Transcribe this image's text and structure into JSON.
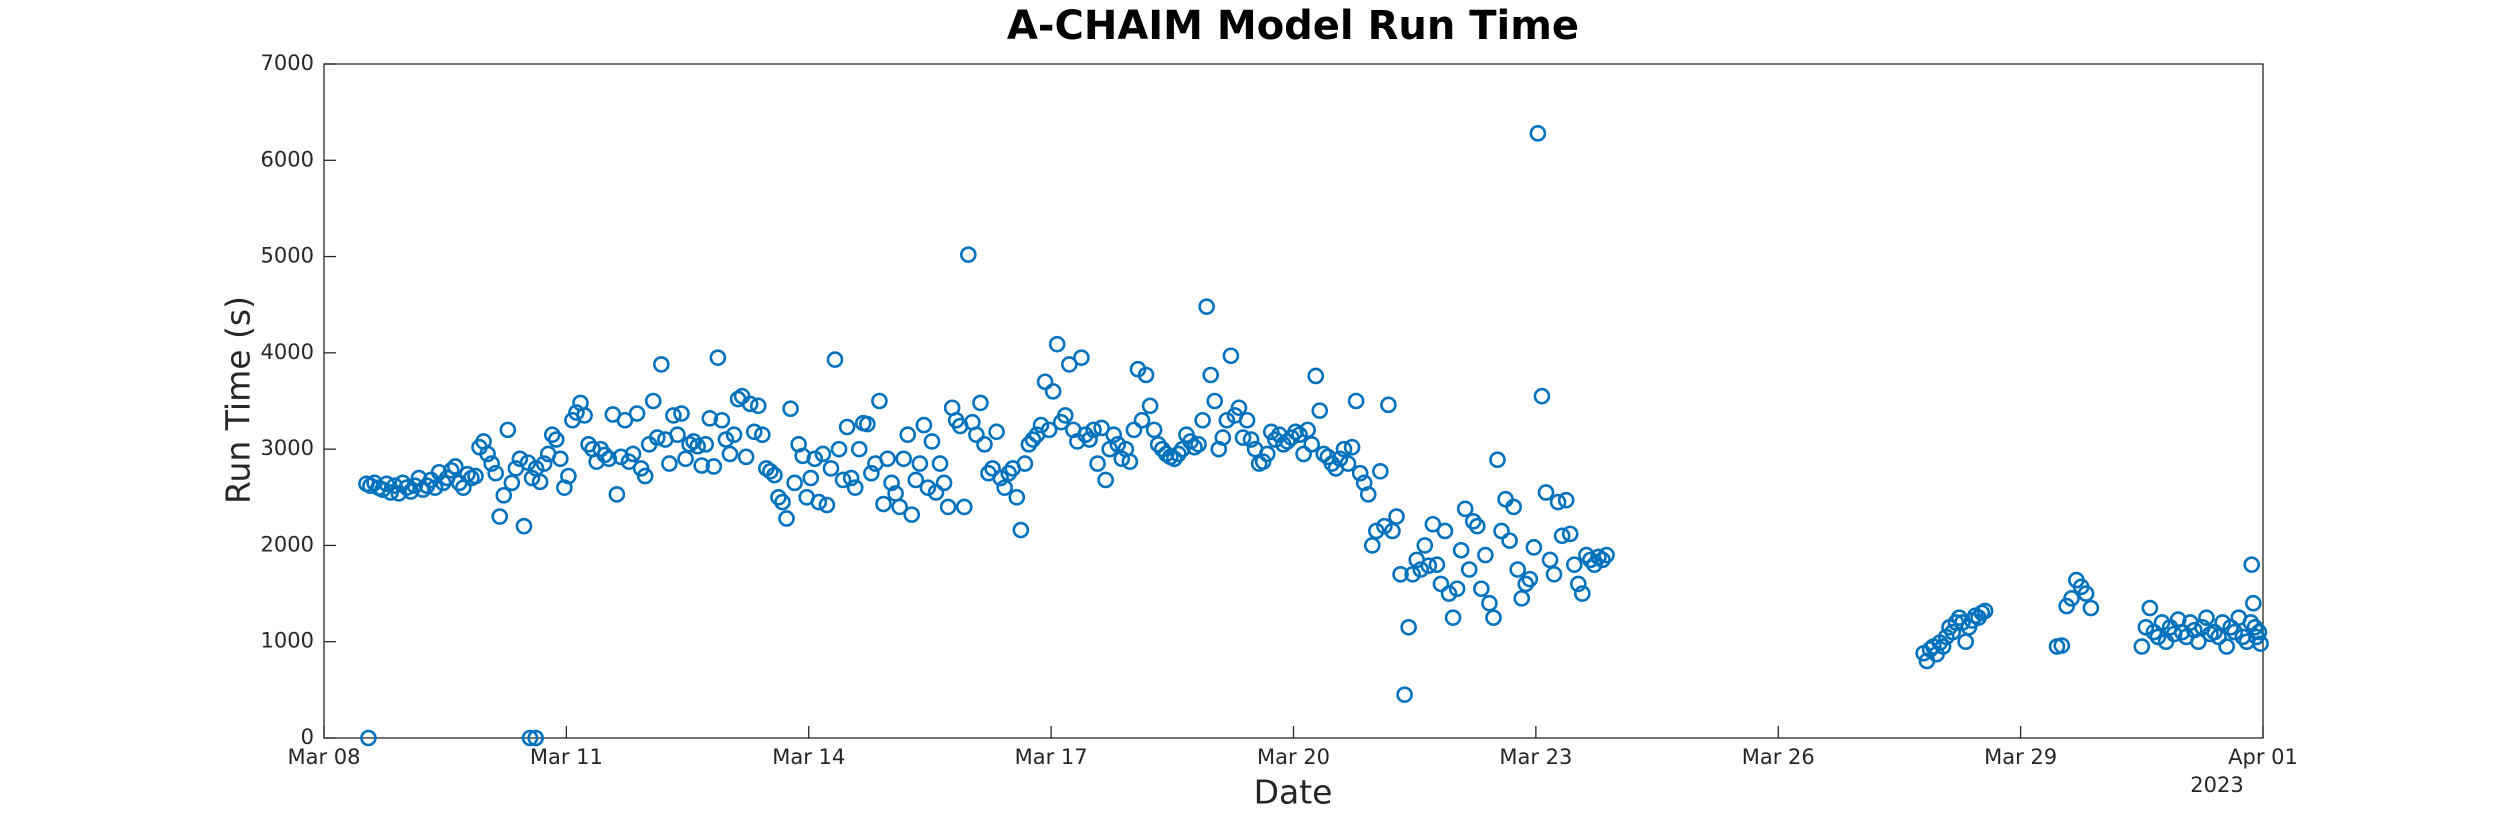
{
  "chart_data": {
    "type": "scatter",
    "title": "A-CHAIM Model Run Time",
    "x_label": "Date",
    "y_label": "Run Time (s)",
    "x_year_label": "2023",
    "xlim": [
      8,
      32
    ],
    "xticks": [
      {
        "value": 8,
        "label": "Mar 08"
      },
      {
        "value": 11,
        "label": "Mar 11"
      },
      {
        "value": 14,
        "label": "Mar 14"
      },
      {
        "value": 17,
        "label": "Mar 17"
      },
      {
        "value": 20,
        "label": "Mar 20"
      },
      {
        "value": 23,
        "label": "Mar 23"
      },
      {
        "value": 26,
        "label": "Mar 26"
      },
      {
        "value": 29,
        "label": "Mar 29"
      },
      {
        "value": 32,
        "label": "Apr 01"
      }
    ],
    "ylim": [
      0,
      7000
    ],
    "yticks": [
      0,
      1000,
      2000,
      3000,
      4000,
      5000,
      6000,
      7000
    ],
    "grid": false,
    "series": [
      {
        "color": "#0072bd",
        "x": [
          8.525,
          8.575,
          8.625,
          8.675,
          8.725,
          8.775,
          8.825,
          8.875,
          8.925,
          8.975,
          9.025,
          9.075,
          9.125,
          9.175,
          9.225,
          9.275,
          9.325,
          9.375,
          9.425,
          9.475,
          9.525,
          9.575,
          9.625,
          9.675,
          9.725,
          9.775,
          9.825,
          9.875,
          9.925,
          9.975,
          10.025,
          10.075,
          10.125,
          10.175,
          10.225,
          10.275,
          10.325,
          10.375,
          10.425,
          10.475,
          10.525,
          10.575,
          10.625,
          10.675,
          10.725,
          10.775,
          10.825,
          10.875,
          10.925,
          10.975,
          11.025,
          11.075,
          11.125,
          11.175,
          11.225,
          11.275,
          11.325,
          11.375,
          11.425,
          11.475,
          11.525,
          11.575,
          11.625,
          11.675,
          11.725,
          11.775,
          11.825,
          11.875,
          11.925,
          11.975,
          12.025,
          12.075,
          12.125,
          12.175,
          12.225,
          12.275,
          12.325,
          12.375,
          12.425,
          12.475,
          12.525,
          12.575,
          12.625,
          12.675,
          12.725,
          12.775,
          12.825,
          12.875,
          12.925,
          12.975,
          13.025,
          13.075,
          13.125,
          13.175,
          13.225,
          13.275,
          13.325,
          13.375,
          13.425,
          13.475,
          13.525,
          13.575,
          13.625,
          13.675,
          13.725,
          13.775,
          13.825,
          13.875,
          13.925,
          13.975,
          14.025,
          14.075,
          14.125,
          14.175,
          14.225,
          14.275,
          14.325,
          14.375,
          14.425,
          14.475,
          14.525,
          14.575,
          14.625,
          14.675,
          14.725,
          14.775,
          14.825,
          14.875,
          14.925,
          14.975,
          15.025,
          15.075,
          15.125,
          15.175,
          15.225,
          15.275,
          15.325,
          15.375,
          15.425,
          15.475,
          15.525,
          15.575,
          15.625,
          15.675,
          15.725,
          15.775,
          15.825,
          15.875,
          15.925,
          15.975,
          16.025,
          16.075,
          16.125,
          16.175,
          16.225,
          16.275,
          16.325,
          16.375,
          16.425,
          16.475,
          16.525,
          16.575,
          16.625,
          16.675,
          16.725,
          16.775,
          16.825,
          16.875,
          16.925,
          16.975,
          17.025,
          17.075,
          17.125,
          17.175,
          17.225,
          17.275,
          17.325,
          17.375,
          17.425,
          17.475,
          17.525,
          17.575,
          17.625,
          17.675,
          17.725,
          17.775,
          17.825,
          17.875,
          17.925,
          17.975,
          18.025,
          18.075,
          18.125,
          18.175,
          18.225,
          18.275,
          18.325,
          18.375,
          18.425,
          18.475,
          18.525,
          18.575,
          18.625,
          18.675,
          18.725,
          18.775,
          18.825,
          18.875,
          18.925,
          18.975,
          19.025,
          19.075,
          19.125,
          19.175,
          19.225,
          19.275,
          19.325,
          19.375,
          19.425,
          19.475,
          19.525,
          19.575,
          19.625,
          19.675,
          19.725,
          19.775,
          19.825,
          19.875,
          19.925,
          19.975,
          20.025,
          20.075,
          20.125,
          20.175,
          20.225,
          20.275,
          20.325,
          20.375,
          20.425,
          20.475,
          20.525,
          20.575,
          20.625,
          20.675,
          20.725,
          20.775,
          20.825,
          20.875,
          20.925,
          20.975,
          21.025,
          21.075,
          21.125,
          21.175,
          21.225,
          21.275,
          21.325,
          21.375,
          21.425,
          21.475,
          21.525,
          21.575,
          21.625,
          21.675,
          21.725,
          21.775,
          21.825,
          21.875,
          21.925,
          21.975,
          22.025,
          22.075,
          22.125,
          22.175,
          22.225,
          22.275,
          22.325,
          22.375,
          22.425,
          22.475,
          22.525,
          22.575,
          22.625,
          22.675,
          22.725,
          22.775,
          22.825,
          22.875,
          22.925,
          22.975,
          23.025,
          23.075,
          23.125,
          23.175,
          23.225,
          23.275,
          23.325,
          23.375,
          23.425,
          23.475,
          23.525,
          23.575,
          23.625,
          23.675,
          23.725,
          23.775,
          23.825,
          23.875,
          27.8,
          27.84,
          27.88,
          27.92,
          27.96,
          28.0,
          28.04,
          28.08,
          28.12,
          28.16,
          28.2,
          28.24,
          28.28,
          28.32,
          28.36,
          28.4,
          28.44,
          28.48,
          28.52,
          28.56,
          29.45,
          29.51,
          29.57,
          29.63,
          29.69,
          29.75,
          29.81,
          29.87,
          30.5,
          30.55,
          30.6,
          30.65,
          30.7,
          30.75,
          30.8,
          30.85,
          30.9,
          30.95,
          31.0,
          31.05,
          31.1,
          31.15,
          31.2,
          31.25,
          31.3,
          31.35,
          31.4,
          31.45,
          31.5,
          31.55,
          31.6,
          31.65,
          31.7,
          31.75,
          31.8,
          31.85,
          31.9,
          31.95,
          31.86,
          31.88,
          31.92,
          31.97,
          8.55,
          10.55,
          10.62
        ],
        "values": [
          2640,
          2620,
          2650,
          2600,
          2580,
          2640,
          2550,
          2620,
          2540,
          2650,
          2600,
          2560,
          2620,
          2700,
          2580,
          2620,
          2680,
          2600,
          2760,
          2650,
          2700,
          2780,
          2820,
          2650,
          2600,
          2740,
          2700,
          2720,
          3020,
          3080,
          2950,
          2850,
          2750,
          2300,
          2520,
          3200,
          2650,
          2800,
          2900,
          2200,
          2860,
          2700,
          2800,
          2660,
          2850,
          2950,
          3150,
          3100,
          2900,
          2600,
          2720,
          3300,
          3380,
          3480,
          3350,
          3050,
          3000,
          2870,
          3000,
          2940,
          2900,
          3360,
          2530,
          2920,
          3300,
          2870,
          2950,
          3370,
          2800,
          2720,
          3050,
          3500,
          3120,
          3880,
          3100,
          2850,
          3350,
          3150,
          3370,
          2900,
          3050,
          3080,
          3030,
          2830,
          3050,
          3320,
          2820,
          3950,
          3300,
          3100,
          2950,
          3150,
          3520,
          3550,
          2920,
          3470,
          3180,
          3450,
          3150,
          2800,
          2770,
          2730,
          2500,
          2450,
          2280,
          3420,
          2650,
          3050,
          2930,
          2500,
          2700,
          2900,
          2450,
          2950,
          2420,
          2800,
          3930,
          3000,
          2680,
          3230,
          2700,
          2600,
          3000,
          3270,
          3260,
          2750,
          2850,
          3500,
          2430,
          2900,
          2650,
          2540,
          2400,
          2900,
          3150,
          2320,
          2680,
          2850,
          3250,
          2600,
          3080,
          2550,
          2850,
          2650,
          2400,
          3430,
          3300,
          3240,
          2400,
          5020,
          3280,
          3150,
          3480,
          3050,
          2750,
          2800,
          3180,
          2700,
          2600,
          2750,
          2800,
          2500,
          2160,
          2850,
          3050,
          3100,
          3150,
          3250,
          3700,
          3200,
          3600,
          4090,
          3280,
          3350,
          3880,
          3200,
          3080,
          3950,
          3150,
          3100,
          3200,
          2850,
          3220,
          2680,
          3000,
          3150,
          3050,
          2900,
          3000,
          2870,
          3200,
          3830,
          3300,
          3770,
          3450,
          3200,
          3050,
          3000,
          2950,
          2920,
          2900,
          2950,
          3000,
          3150,
          3080,
          3020,
          3050,
          3300,
          4480,
          3770,
          3500,
          3000,
          3120,
          3300,
          3970,
          3350,
          3430,
          3120,
          3300,
          3100,
          3000,
          2850,
          2870,
          2950,
          3180,
          3100,
          3150,
          3050,
          3080,
          3120,
          3180,
          3150,
          2950,
          3200,
          3050,
          3760,
          3400,
          2950,
          2920,
          2850,
          2800,
          2900,
          3000,
          2850,
          3020,
          3500,
          2750,
          2650,
          2530,
          2000,
          2150,
          2770,
          2200,
          3460,
          2150,
          2300,
          1700,
          450,
          1150,
          1700,
          1850,
          1750,
          2000,
          1790,
          2220,
          1800,
          1600,
          2150,
          1500,
          1250,
          1550,
          1950,
          2380,
          1750,
          2250,
          2200,
          1550,
          1900,
          1400,
          1250,
          2890,
          2150,
          2480,
          2050,
          2400,
          1750,
          1450,
          1600,
          1650,
          1980,
          6280,
          3550,
          2550,
          1850,
          1700,
          2450,
          2100,
          2470,
          2120,
          1800,
          1600,
          1500,
          1900,
          1850,
          1800,
          1880,
          1850,
          1900,
          880,
          800,
          920,
          950,
          870,
          990,
          950,
          1050,
          1150,
          1100,
          1200,
          1250,
          1200,
          1000,
          1150,
          1220,
          1270,
          1250,
          1300,
          1320,
          950,
          960,
          1370,
          1450,
          1640,
          1570,
          1500,
          1350,
          950,
          1150,
          1350,
          1100,
          1050,
          1200,
          1000,
          1150,
          1080,
          1230,
          1100,
          1050,
          1200,
          1120,
          1000,
          1150,
          1250,
          1080,
          1100,
          1050,
          1200,
          950,
          1150,
          1100,
          1250,
          1050,
          1000,
          1200,
          1150,
          1100,
          1800,
          1400,
          1050,
          980,
          0,
          0,
          0
        ]
      }
    ]
  }
}
